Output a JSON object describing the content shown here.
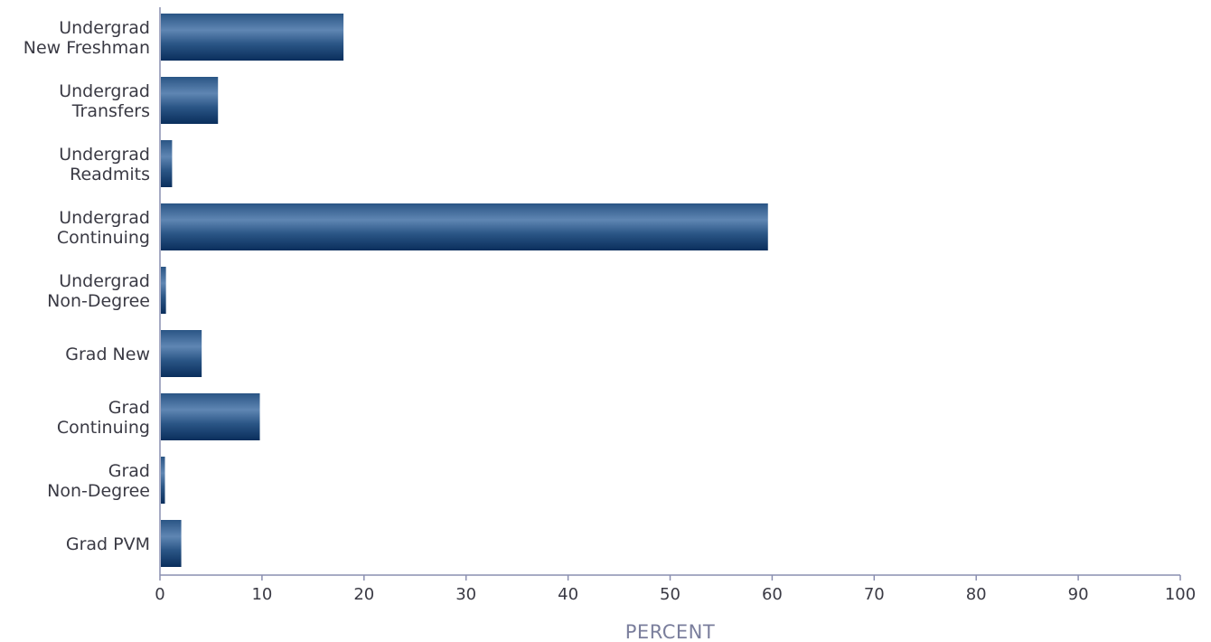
{
  "chart_data": {
    "type": "bar",
    "orientation": "horizontal",
    "categories": [
      [
        "Undergrad",
        "New Freshman"
      ],
      [
        "Undergrad",
        "Transfers"
      ],
      [
        "Undergrad",
        "Readmits"
      ],
      [
        "Undergrad",
        "Continuing"
      ],
      [
        "Undergrad",
        "Non-Degree"
      ],
      [
        "Grad New"
      ],
      [
        "Grad",
        "Continuing"
      ],
      [
        "Grad",
        "Non-Degree"
      ],
      [
        "Grad PVM"
      ]
    ],
    "values": [
      17.9,
      5.6,
      1.1,
      59.5,
      0.5,
      4.0,
      9.7,
      0.4,
      2.0
    ],
    "xlabel": "PERCENT",
    "ylabel": "",
    "xlim": [
      0,
      100
    ],
    "xticks": [
      0,
      10,
      20,
      30,
      40,
      50,
      60,
      70,
      80,
      90,
      100
    ],
    "grid": false,
    "colors": {
      "bar_dark": "#0a2e5c",
      "bar_mid": "#2a5585",
      "bar_light": "#5f86b3",
      "axis": "#8a8fb0"
    }
  }
}
